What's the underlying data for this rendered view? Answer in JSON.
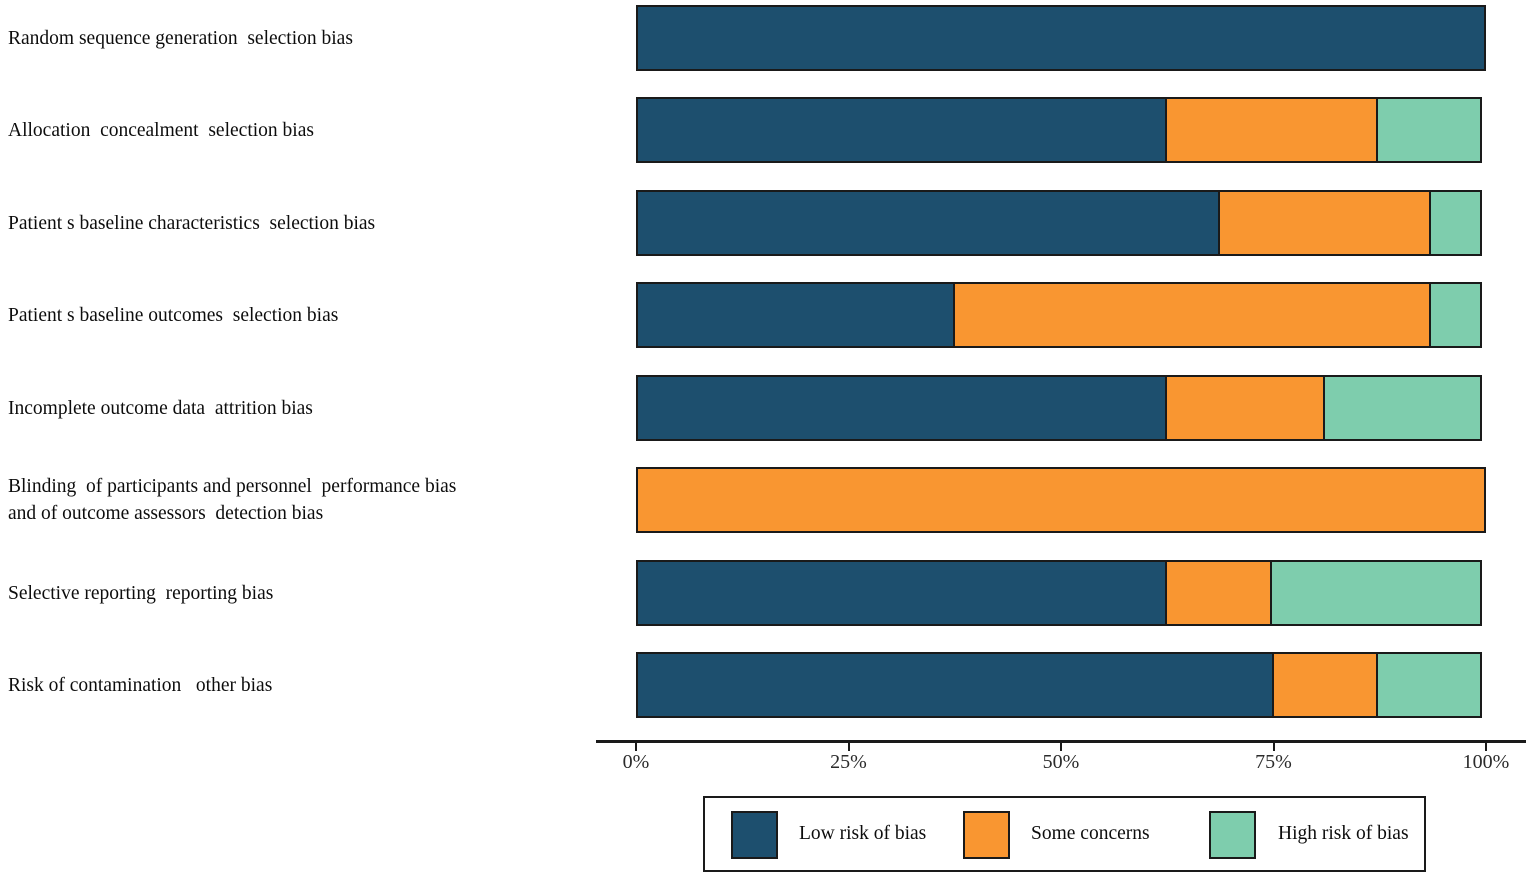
{
  "chart_data": {
    "type": "bar",
    "orientation": "horizontal",
    "stacked": true,
    "unit": "percent",
    "grid": false,
    "categories": [
      "Random sequence generation  selection bias",
      "Allocation  concealment  selection bias",
      "Patient s baseline characteristics  selection bias",
      "Patient s baseline outcomes  selection bias",
      "Incomplete outcome data  attrition bias",
      "Blinding  of participants and personnel  performance bias\nand of outcome assessors  detection bias",
      "Selective reporting  reporting bias",
      "Risk of contamination   other bias"
    ],
    "series": [
      {
        "name": "Low risk of bias",
        "color": "#1d4f6e",
        "values": [
          100,
          62.5,
          68.75,
          37.5,
          62.5,
          0,
          62.5,
          75
        ]
      },
      {
        "name": "Some concerns",
        "color": "#f99631",
        "values": [
          0,
          25,
          25,
          56.25,
          18.75,
          100,
          12.5,
          12.5
        ]
      },
      {
        "name": "High risk of bias",
        "color": "#7ecdad",
        "values": [
          0,
          12.5,
          6.25,
          6.25,
          18.75,
          0,
          25,
          12.5
        ]
      }
    ],
    "x_axis": {
      "range": [
        0,
        100
      ],
      "ticks": [
        0,
        25,
        50,
        75,
        100
      ],
      "tick_labels": [
        "0%",
        "25%",
        "50%",
        "75%",
        "100%"
      ]
    },
    "legend": {
      "position": "bottom",
      "entries": [
        "Low risk of bias",
        "Some concerns",
        "High risk of bias"
      ]
    }
  },
  "colors": {
    "bar_border": "#1a1a1a",
    "axis": "#1a1a1a",
    "background": "#ffffff",
    "text": "#0d0d0d"
  }
}
